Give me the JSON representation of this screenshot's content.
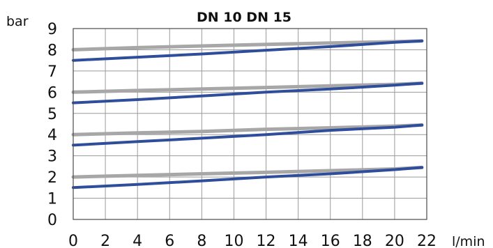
{
  "chart_data": {
    "type": "line",
    "title": "DN 10 DN 15",
    "xlabel": "l/min",
    "ylabel": "bar",
    "xlim": [
      0,
      22
    ],
    "ylim": [
      0,
      9
    ],
    "xticks": [
      "0",
      "2",
      "4",
      "6",
      "8",
      "10",
      "12",
      "14",
      "16",
      "18",
      "20",
      "22"
    ],
    "yticks": [
      "0",
      "1",
      "2",
      "3",
      "4",
      "5",
      "6",
      "7",
      "8",
      "9"
    ],
    "grid": true,
    "legend": "none",
    "colors": {
      "blue_series": "#2e4d9a",
      "gray_series": "#a7a7a7",
      "grid": "#9a9a9a",
      "frame": "#4a4a4a"
    },
    "series": [
      {
        "color_key": "gray_series",
        "x": [
          0,
          4,
          8,
          12,
          16,
          20,
          21.7
        ],
        "y": [
          8.0,
          8.1,
          8.18,
          8.25,
          8.32,
          8.38,
          8.42
        ]
      },
      {
        "color_key": "blue_series",
        "x": [
          0,
          4,
          8,
          12,
          16,
          20,
          21.7
        ],
        "y": [
          7.5,
          7.65,
          7.8,
          7.98,
          8.15,
          8.35,
          8.42
        ]
      },
      {
        "color_key": "gray_series",
        "x": [
          0,
          4,
          8,
          12,
          16,
          20,
          21.7
        ],
        "y": [
          6.0,
          6.08,
          6.15,
          6.22,
          6.3,
          6.37,
          6.42
        ]
      },
      {
        "color_key": "blue_series",
        "x": [
          0,
          4,
          8,
          12,
          16,
          20,
          21.7
        ],
        "y": [
          5.5,
          5.65,
          5.82,
          6.0,
          6.15,
          6.33,
          6.42
        ]
      },
      {
        "color_key": "gray_series",
        "x": [
          0,
          4,
          8,
          12,
          16,
          20,
          21.7
        ],
        "y": [
          4.0,
          4.08,
          4.15,
          4.25,
          4.32,
          4.4,
          4.45
        ]
      },
      {
        "color_key": "blue_series",
        "x": [
          0,
          4,
          8,
          12,
          16,
          20,
          21.7
        ],
        "y": [
          3.5,
          3.67,
          3.83,
          4.0,
          4.2,
          4.35,
          4.45
        ]
      },
      {
        "color_key": "gray_series",
        "x": [
          0,
          4,
          8,
          12,
          16,
          20,
          21.7
        ],
        "y": [
          2.0,
          2.08,
          2.15,
          2.22,
          2.3,
          2.38,
          2.45
        ]
      },
      {
        "color_key": "blue_series",
        "x": [
          0,
          4,
          8,
          12,
          16,
          20,
          21.7
        ],
        "y": [
          1.5,
          1.65,
          1.82,
          2.0,
          2.15,
          2.35,
          2.45
        ]
      }
    ]
  }
}
